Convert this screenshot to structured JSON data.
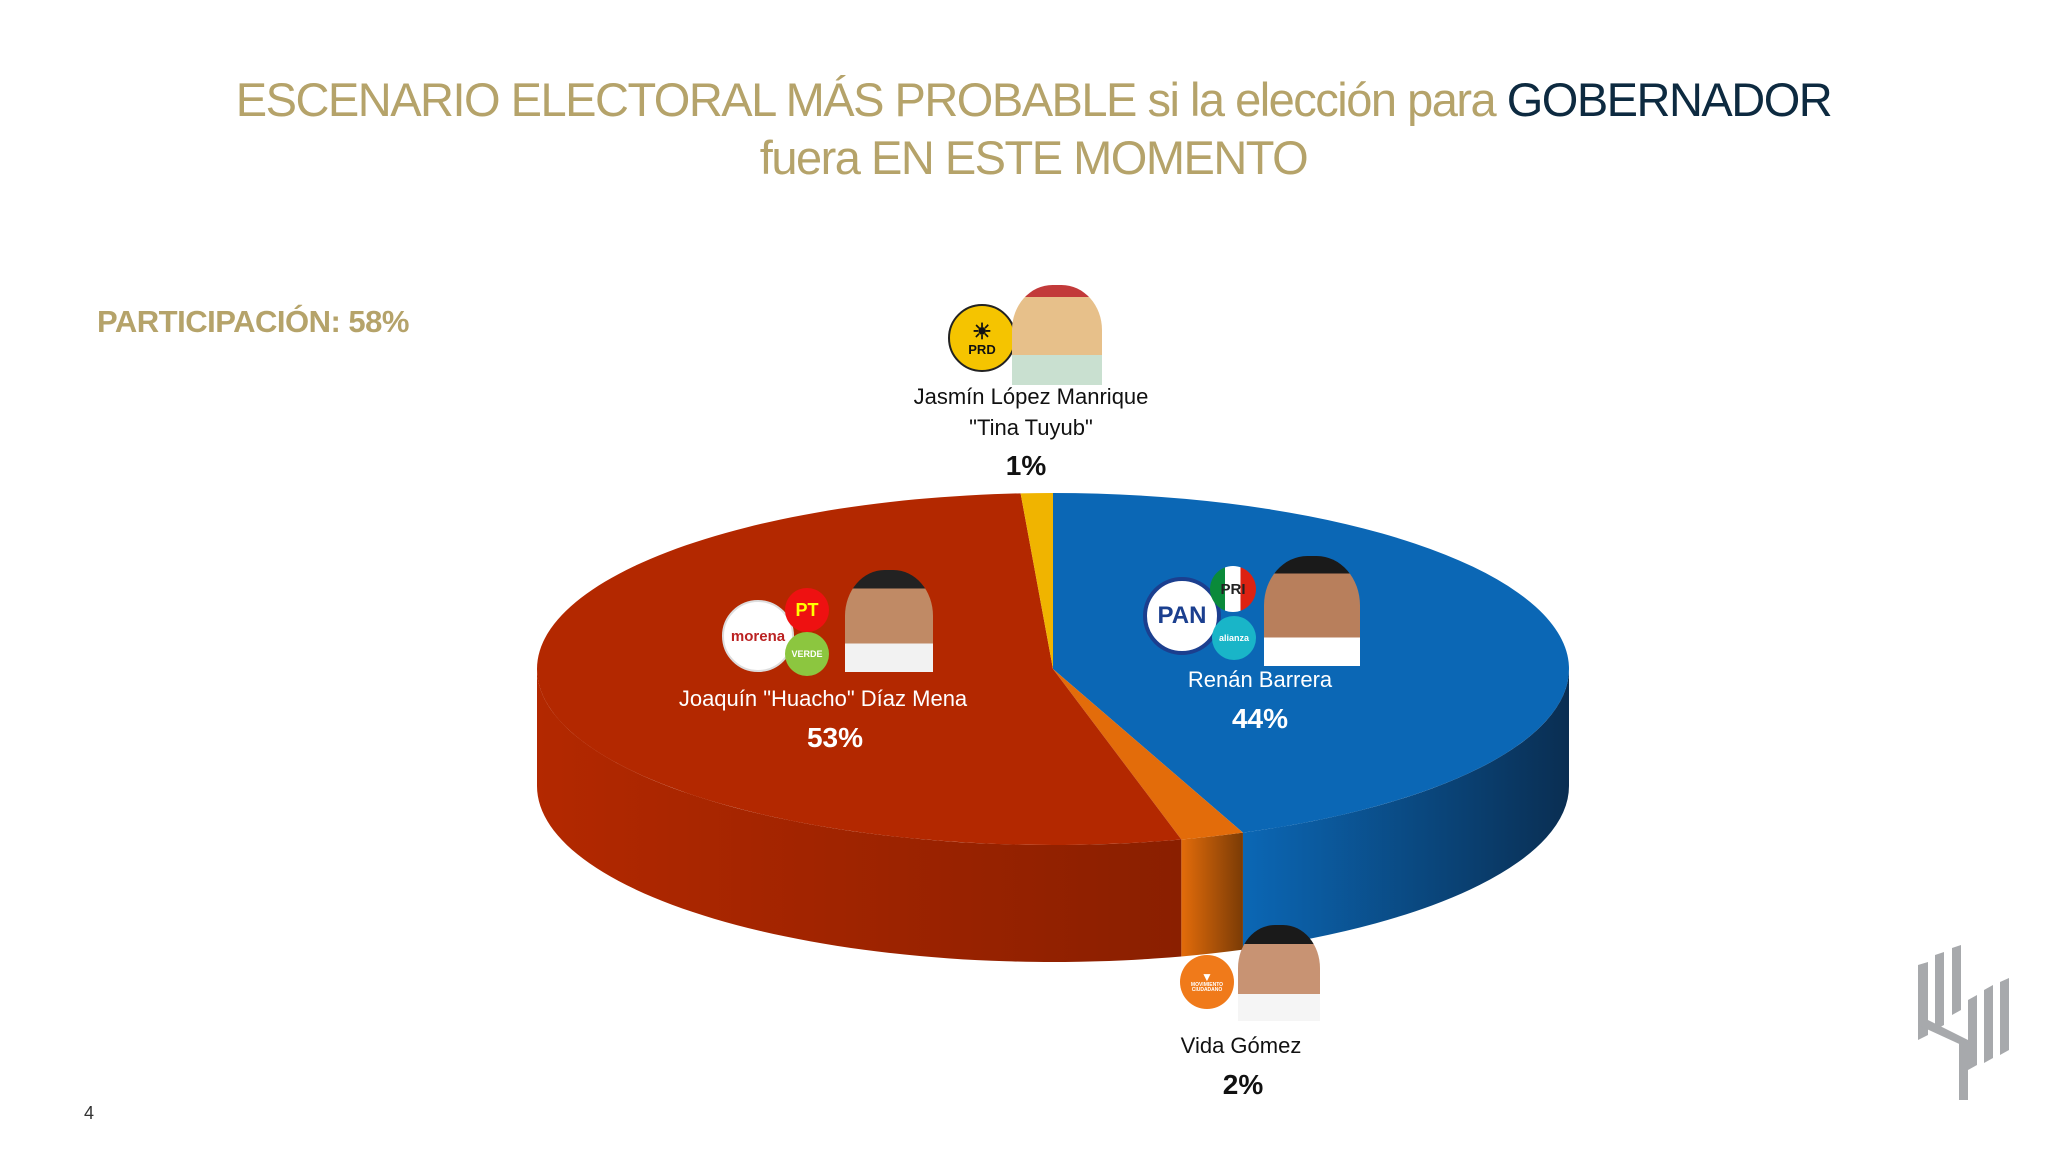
{
  "title": {
    "line1_part1": "ESCENARIO ELECTORAL MÁS PROBABLE si la elección para ",
    "line1_highlight": "GOBERNADOR",
    "line2": "fuera EN ESTE MOMENTO"
  },
  "participation": "PARTICIPACIÓN: 58%",
  "page_number": "4",
  "chart_data": {
    "type": "pie",
    "style": "3d",
    "title": "ESCENARIO ELECTORAL MÁS PROBABLE si la elección para GOBERNADOR fuera EN ESTE MOMENTO",
    "slices": [
      {
        "name": "Renán Barrera",
        "value": 44,
        "label": "44%",
        "color": "#0b67b5",
        "side_color": "#0a2e52",
        "parties": [
          "PAN",
          "PRI",
          "alianza"
        ]
      },
      {
        "name": "Vida Gómez",
        "value": 2,
        "label": "2%",
        "color": "#e36c0a",
        "side_color": "#7a3b06",
        "parties": [
          "MOVIMIENTO CIUDADANO"
        ]
      },
      {
        "name": "Joaquín \"Huacho\" Díaz Mena",
        "value": 53,
        "label": "53%",
        "color": "#b32800",
        "side_color": "#8a1f00",
        "parties": [
          "morena",
          "PT",
          "VERDE"
        ]
      },
      {
        "name": "Jasmín López Manrique",
        "subname": "\"Tina Tuyub\"",
        "value": 1,
        "label": "1%",
        "color": "#f0b400",
        "side_color": "#9c7500",
        "parties": [
          "PRD"
        ]
      }
    ]
  }
}
